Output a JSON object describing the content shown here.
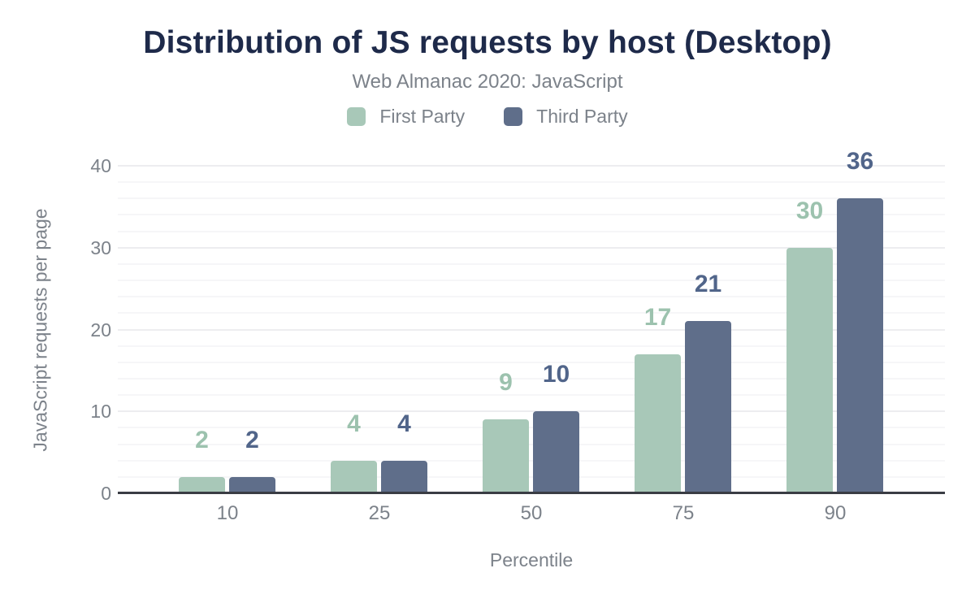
{
  "colors": {
    "background": "#ffffff",
    "title_text": "#1e2a4a",
    "muted_text": "#7c828a",
    "axis_line": "#3a3d44",
    "grid_minor": "#f6f6f8",
    "grid_major": "#ededf0"
  },
  "chart_data": {
    "type": "bar",
    "title": "Distribution of JS requests by host (Desktop)",
    "subtitle": "Web Almanac 2020: JavaScript",
    "xlabel": "Percentile",
    "ylabel": "JavaScript requests per page",
    "categories": [
      "10",
      "25",
      "50",
      "75",
      "90"
    ],
    "series": [
      {
        "name": "First Party",
        "color": "#a8c8b8",
        "label_color": "#9cc2ae",
        "values": [
          2,
          4,
          9,
          17,
          30
        ]
      },
      {
        "name": "Third Party",
        "color": "#5f6e8a",
        "label_color": "#51658a",
        "values": [
          2,
          4,
          10,
          21,
          36
        ]
      }
    ],
    "ylim": [
      0,
      40
    ],
    "yticks": [
      0,
      10,
      20,
      30,
      40
    ],
    "grid": {
      "minor_step": 2,
      "major_step": 10
    },
    "legend_position": "top",
    "value_labels_shown": true
  }
}
